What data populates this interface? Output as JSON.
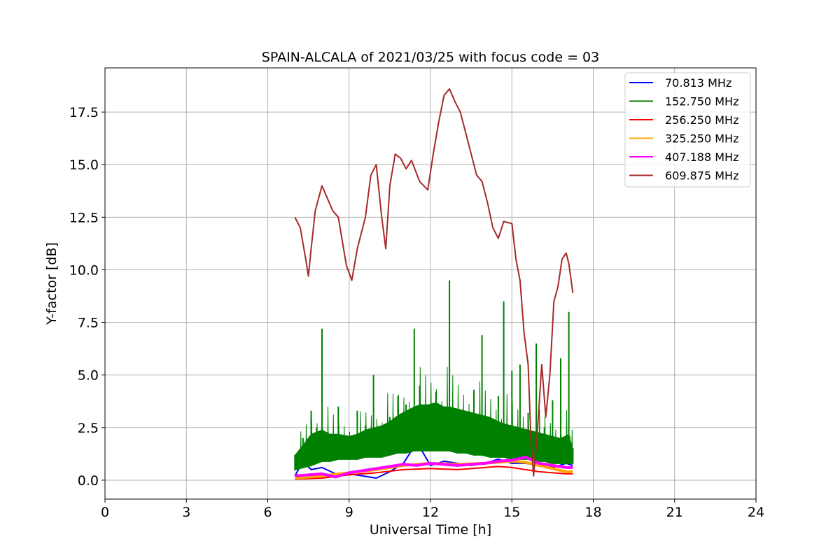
{
  "chart_data": {
    "type": "line",
    "title": "SPAIN-ALCALA of 2021/03/25 with focus code = 03",
    "xlabel": "Universal Time [h]",
    "ylabel": "Y-factor [dB]",
    "xlim": [
      0,
      24
    ],
    "ylim": [
      -0.9,
      19.6
    ],
    "xticks": [
      0,
      3,
      6,
      9,
      12,
      15,
      18,
      21,
      24
    ],
    "yticks": [
      0.0,
      2.5,
      5.0,
      7.5,
      10.0,
      12.5,
      15.0,
      17.5
    ],
    "xtick_labels": [
      "0",
      "3",
      "6",
      "9",
      "12",
      "15",
      "18",
      "21",
      "24"
    ],
    "ytick_labels": [
      "0.0",
      "2.5",
      "5.0",
      "7.5",
      "10.0",
      "12.5",
      "15.0",
      "17.5"
    ],
    "grid": true,
    "legend_position": "top-right",
    "series": [
      {
        "name": "70.813 MHz",
        "legend_label": " 70.813 MHz",
        "color": "#0000ff",
        "x": [
          7.0,
          7.3,
          7.6,
          8.0,
          8.5,
          9.0,
          9.5,
          10.0,
          10.5,
          11.0,
          11.5,
          12.0,
          12.5,
          13.0,
          13.5,
          14.0,
          14.5,
          15.0,
          15.5,
          16.0,
          16.5,
          17.0,
          17.25
        ],
        "values": [
          0.2,
          0.9,
          0.5,
          0.6,
          0.3,
          0.3,
          0.2,
          0.1,
          0.4,
          0.8,
          1.8,
          0.7,
          0.9,
          0.8,
          0.7,
          0.8,
          1.0,
          0.8,
          0.8,
          0.7,
          0.6,
          0.8,
          0.7
        ]
      },
      {
        "name": "152.750 MHz",
        "legend_label": "152.750 MHz",
        "color": "#008000",
        "x": [
          7.0,
          7.3,
          7.6,
          7.8,
          8.0,
          8.3,
          8.6,
          9.0,
          9.3,
          9.6,
          9.9,
          10.2,
          10.5,
          10.8,
          11.1,
          11.4,
          11.6,
          11.9,
          12.2,
          12.5,
          12.7,
          13.0,
          13.3,
          13.6,
          13.9,
          14.2,
          14.5,
          14.7,
          15.0,
          15.3,
          15.6,
          15.9,
          16.2,
          16.5,
          16.8,
          17.1,
          17.25
        ],
        "values": [
          1.2,
          2.0,
          3.3,
          2.5,
          7.2,
          1.8,
          3.5,
          1.8,
          3.3,
          2.6,
          5.0,
          1.8,
          3.0,
          4.0,
          3.6,
          7.2,
          4.5,
          2.7,
          4.2,
          3.5,
          9.5,
          3.2,
          2.8,
          4.3,
          6.9,
          2.2,
          4.0,
          8.5,
          5.2,
          5.5,
          3.2,
          6.5,
          2.5,
          3.8,
          5.8,
          8.0,
          1.5
        ],
        "band_low": [
          0.5,
          0.6,
          0.7,
          0.8,
          0.9,
          0.9,
          1.0,
          1.0,
          1.0,
          1.1,
          1.1,
          1.1,
          1.2,
          1.3,
          1.3,
          1.4,
          1.4,
          1.4,
          1.4,
          1.4,
          1.4,
          1.3,
          1.3,
          1.2,
          1.2,
          1.1,
          1.1,
          1.1,
          1.0,
          1.0,
          1.0,
          0.9,
          0.9,
          0.8,
          0.8,
          0.8,
          0.8
        ],
        "band_high": [
          1.2,
          1.7,
          2.2,
          2.3,
          2.4,
          2.2,
          2.2,
          2.1,
          2.2,
          2.4,
          2.5,
          2.6,
          2.8,
          3.1,
          3.3,
          3.5,
          3.6,
          3.6,
          3.7,
          3.5,
          3.5,
          3.4,
          3.3,
          3.2,
          3.1,
          3.0,
          2.8,
          2.7,
          2.6,
          2.5,
          2.4,
          2.3,
          2.2,
          2.1,
          2.0,
          2.2,
          1.5
        ]
      },
      {
        "name": "256.250 MHz",
        "legend_label": "256.250 MHz",
        "color": "#ff0000",
        "x": [
          7.0,
          8.0,
          9.0,
          10.0,
          11.0,
          12.0,
          13.0,
          14.0,
          14.5,
          15.0,
          15.5,
          16.0,
          16.5,
          17.0,
          17.25
        ],
        "values": [
          0.05,
          0.1,
          0.25,
          0.35,
          0.5,
          0.55,
          0.5,
          0.6,
          0.65,
          0.6,
          0.5,
          0.4,
          0.35,
          0.3,
          0.3
        ]
      },
      {
        "name": "325.250 MHz",
        "legend_label": "325.250 MHz",
        "color": "#ffa500",
        "x": [
          7.0,
          8.0,
          9.0,
          10.0,
          11.0,
          12.0,
          13.0,
          14.0,
          15.0,
          15.5,
          16.0,
          16.5,
          17.0,
          17.25
        ],
        "values": [
          0.1,
          0.2,
          0.35,
          0.5,
          0.7,
          0.8,
          0.75,
          0.8,
          0.9,
          0.85,
          0.7,
          0.55,
          0.4,
          0.4
        ]
      },
      {
        "name": "407.188 MHz",
        "legend_label": "407.188 MHz",
        "color": "#ff00ff",
        "x": [
          7.0,
          7.5,
          8.0,
          8.5,
          9.0,
          9.5,
          10.0,
          10.5,
          11.0,
          11.5,
          12.0,
          12.5,
          13.0,
          13.5,
          14.0,
          14.5,
          15.0,
          15.5,
          16.0,
          16.5,
          17.0,
          17.25
        ],
        "values": [
          0.2,
          0.25,
          0.3,
          0.15,
          0.35,
          0.45,
          0.55,
          0.65,
          0.75,
          0.7,
          0.8,
          0.75,
          0.7,
          0.75,
          0.8,
          0.9,
          0.95,
          1.1,
          0.8,
          0.7,
          0.6,
          0.6
        ]
      },
      {
        "name": "609.875 MHz",
        "legend_label": "609.875 MHz",
        "color": "#a52a2a",
        "x": [
          7.0,
          7.2,
          7.4,
          7.5,
          7.6,
          7.75,
          8.0,
          8.2,
          8.4,
          8.6,
          8.9,
          9.1,
          9.3,
          9.6,
          9.8,
          10.0,
          10.2,
          10.35,
          10.5,
          10.7,
          10.9,
          11.1,
          11.3,
          11.6,
          11.9,
          12.1,
          12.3,
          12.5,
          12.7,
          12.9,
          13.1,
          13.4,
          13.7,
          13.9,
          14.1,
          14.3,
          14.5,
          14.7,
          15.0,
          15.15,
          15.3,
          15.45,
          15.6,
          15.7,
          15.8,
          15.95,
          16.1,
          16.25,
          16.4,
          16.55,
          16.7,
          16.85,
          17.0,
          17.1,
          17.25
        ],
        "values": [
          12.5,
          12.0,
          10.5,
          9.7,
          11.0,
          12.8,
          14.0,
          13.4,
          12.8,
          12.5,
          10.2,
          9.5,
          11.0,
          12.5,
          14.5,
          15.0,
          12.5,
          11.0,
          14.0,
          15.5,
          15.3,
          14.8,
          15.2,
          14.2,
          13.8,
          15.5,
          17.0,
          18.3,
          18.6,
          18.0,
          17.5,
          16.0,
          14.5,
          14.2,
          13.2,
          12.0,
          11.5,
          12.3,
          12.2,
          10.5,
          9.5,
          7.0,
          5.5,
          2.0,
          0.2,
          2.5,
          5.5,
          3.0,
          5.0,
          8.5,
          9.2,
          10.5,
          10.8,
          10.3,
          8.9
        ]
      }
    ]
  }
}
